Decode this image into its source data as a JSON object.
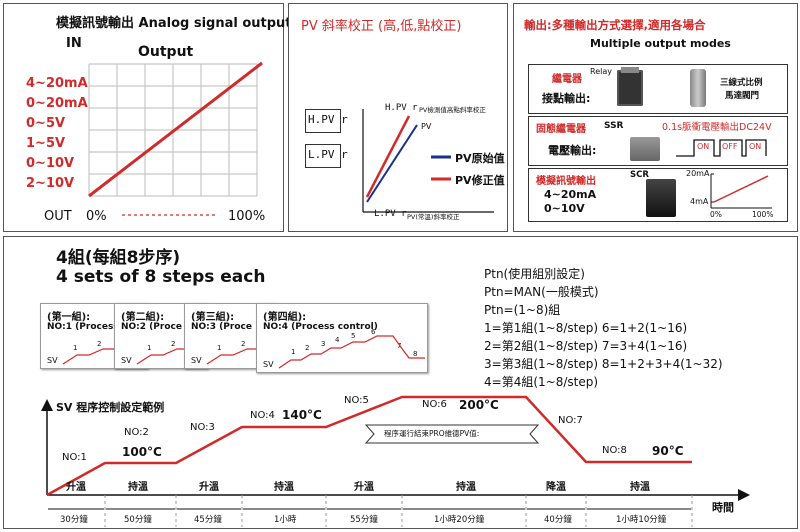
{
  "panel1": {
    "title": "模擬訊號輸出  Analog signal output",
    "in_label": "IN",
    "chart_title": "Output",
    "ranges": [
      "4~20mA",
      "0~20mA",
      "0~5V",
      "1~5V",
      "0~10V",
      "2~10V"
    ],
    "out_label": "OUT",
    "x_start": "0%",
    "x_end": "100%"
  },
  "panel2": {
    "title": "PV 斜率校正 (高,低,點校正)",
    "hpvr": "H.PV r",
    "lpvr": "L.PV r",
    "hpvr_note": "PV檢測值高點斜率校正",
    "lpvr_note": "PV(常溫)斜率校正",
    "pv_label": "PV",
    "legend_raw": "PV原始值",
    "legend_corrected": "PV修正值"
  },
  "panel3": {
    "title_cn": "輸出:多種輸出方式選擇,適用各場合",
    "title_en": "Multiple output modes",
    "relay_title": "繼電器",
    "relay_en": "Relay",
    "relay_sub": "接點輸出:",
    "relay_note1": "三線式比例",
    "relay_note2": "馬達閥門",
    "ssr_title": "固態繼電器",
    "ssr_en": "SSR",
    "ssr_sub": "電壓輸出:",
    "ssr_note": "0.1s脈衝電壓輸出DC24V",
    "on1": "ON",
    "off": "OFF",
    "on2": "ON",
    "scr_title": "模擬訊號輸出",
    "scr_en": "SCR",
    "scr_r1": "4~20mA",
    "scr_r2": "0~10V",
    "y_top": "20mA",
    "y_bot": "4mA",
    "x0": "0%",
    "x1": "100%"
  },
  "bottom": {
    "title1": "4組(每組8步序)",
    "title2": "4 sets of 8 steps each",
    "cards": [
      {
        "title": "(第一組):",
        "sub": "NO:1 (Process",
        "sv": "SV",
        "steps": [
          "1",
          "2"
        ]
      },
      {
        "title": "(第二組):",
        "sub": "NO:2 (Proce",
        "sv": "SV",
        "steps": [
          "1",
          "2"
        ]
      },
      {
        "title": "(第三組):",
        "sub": "NO:3 (Proce",
        "sv": "SV",
        "steps": [
          "1",
          "2"
        ]
      },
      {
        "title": "(第四組):",
        "sub": "NO:4 (Process control)",
        "sv": "SV",
        "steps": [
          "1",
          "2",
          "3",
          "4",
          "5",
          "6",
          "7",
          "8"
        ]
      }
    ],
    "ptn_lines": [
      "Ptn(使用組別設定)",
      "Ptn=MAN(一般模式)",
      "Ptn=(1~8)組",
      "1=第1組(1~8/step)  6=1+2(1~16)",
      "2=第2組(1~8/step)  7=3+4(1~16)",
      "3=第3組(1~8/step)  8=1+2+3+4(1~32)",
      "4=第4組(1~8/step)"
    ],
    "sv_axis": "SV  程序控制設定範例",
    "time_axis": "時間",
    "nodes": [
      "NO:1",
      "NO:2",
      "NO:3",
      "NO:4",
      "NO:5",
      "NO:6",
      "NO:7",
      "NO:8"
    ],
    "temps": [
      "100°C",
      "140°C",
      "200°C",
      "90°C"
    ],
    "banner": "程序運行結束PRO維德PV值:",
    "phases": [
      "升溫",
      "持溫",
      "升溫",
      "持溫",
      "升溫",
      "持溫",
      "降溫",
      "持溫"
    ],
    "durations": [
      "30分鐘",
      "50分鐘",
      "45分鐘",
      "1小時",
      "55分鐘",
      "1小時20分鐘",
      "40分鐘",
      "1小時10分鐘"
    ]
  }
}
